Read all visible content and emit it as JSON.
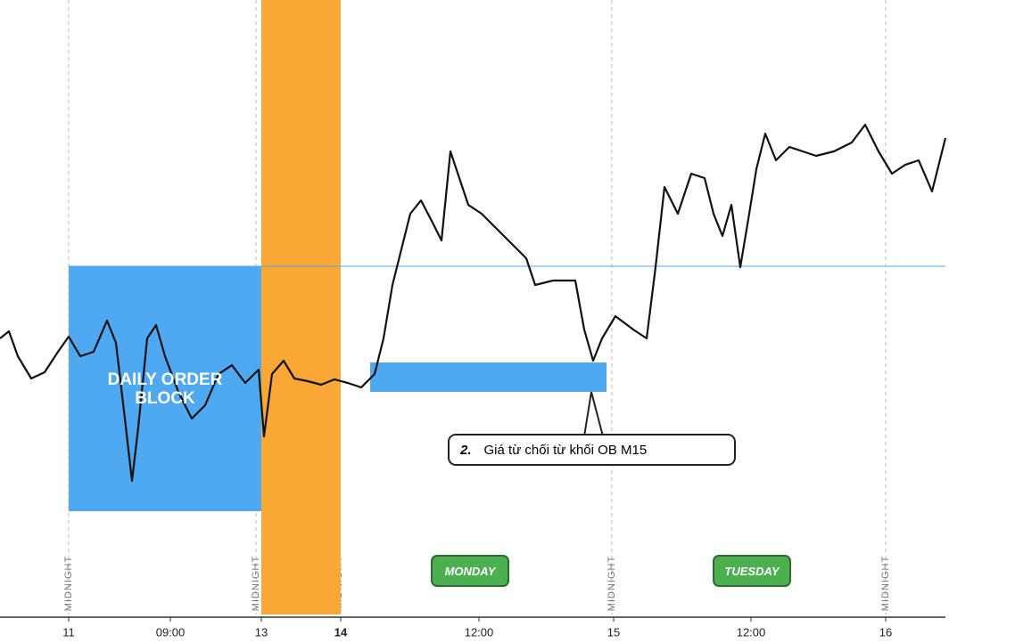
{
  "chart_data": {
    "type": "line",
    "color": "#111111",
    "xlim": [
      0,
      106
    ],
    "ylim": [
      0,
      69
    ],
    "xticks": [
      {
        "value": 7.7,
        "label": "11"
      },
      {
        "value": 19.1,
        "label": "09:00"
      },
      {
        "value": 29.3,
        "label": "13"
      },
      {
        "value": 38.2,
        "label": "14"
      },
      {
        "value": 53.7,
        "label": "12:00"
      },
      {
        "value": 68.8,
        "label": "15"
      },
      {
        "value": 84.2,
        "label": "12:00"
      },
      {
        "value": 99.3,
        "label": "16"
      }
    ],
    "x": [
      0,
      1,
      2,
      3.5,
      5,
      6.5,
      7.7,
      9,
      10.5,
      12,
      13,
      14,
      14.8,
      15.5,
      16.5,
      17.5,
      18.5,
      20,
      21.5,
      23,
      24.5,
      26,
      27.5,
      29,
      29.6,
      30.5,
      31.8,
      33,
      34.5,
      36,
      37.5,
      39,
      40.5,
      42,
      43,
      44,
      45,
      46,
      47.2,
      48.5,
      49.5,
      50.5,
      51.5,
      52.5,
      54,
      55.5,
      57,
      59,
      60,
      62,
      64.5,
      65.5,
      66.5,
      67.5,
      69,
      71,
      72.5,
      73.5,
      74.5,
      76,
      77.5,
      79,
      80,
      81,
      82,
      83,
      84,
      84.8,
      85.8,
      87,
      88.5,
      90,
      91.5,
      93.5,
      95.5,
      97,
      98.5,
      100,
      101.5,
      103,
      104.5,
      106
    ],
    "values": [
      31,
      31.8,
      29,
      26.5,
      27.2,
      29.5,
      31.2,
      29,
      29.5,
      33,
      30.5,
      22,
      15,
      21,
      31,
      32.5,
      29,
      25,
      22,
      23.5,
      27,
      28,
      26,
      27.5,
      20,
      27,
      28.5,
      26.5,
      26.2,
      25.8,
      26.4,
      26,
      25.5,
      27,
      31,
      37,
      41,
      45,
      46.5,
      44,
      42,
      52,
      49,
      46,
      45,
      43.5,
      42,
      40,
      37,
      37.5,
      37.5,
      32,
      28.5,
      31,
      33.5,
      32,
      31,
      39,
      48,
      45,
      49.5,
      49,
      45,
      42.5,
      46,
      39,
      45,
      50,
      54,
      51,
      52.5,
      52,
      51.5,
      52,
      53,
      55,
      52,
      49.5,
      50.5,
      51,
      47.5,
      53.5
    ],
    "highlight": [
      29.3,
      38.2
    ],
    "zones": [
      {
        "x": [
          7.7,
          29.3
        ],
        "y": [
          11.6,
          39.1
        ],
        "label": "DAILY ORDER BLOCK"
      },
      {
        "x": [
          41.5,
          68
        ],
        "y": [
          25,
          28.3
        ]
      }
    ],
    "level": 39.1,
    "session_lines": [
      {
        "x": 7.7,
        "label": "MIDNIGHT"
      },
      {
        "x": 28.7,
        "label": "MIDNIGHT"
      },
      {
        "x": 38.0,
        "label": "MIDNIGHT"
      },
      {
        "x": 68.6,
        "label": "MIDNIGHT"
      },
      {
        "x": 99.3,
        "label": "MIDNIGHT"
      }
    ],
    "day_labels": [
      {
        "x": 52.7,
        "label": "MONDAY"
      },
      {
        "x": 84.3,
        "label": "TUESDAY"
      }
    ],
    "callout": {
      "number": "2.",
      "text": "Giá từ chối từ khối OB M15"
    }
  }
}
